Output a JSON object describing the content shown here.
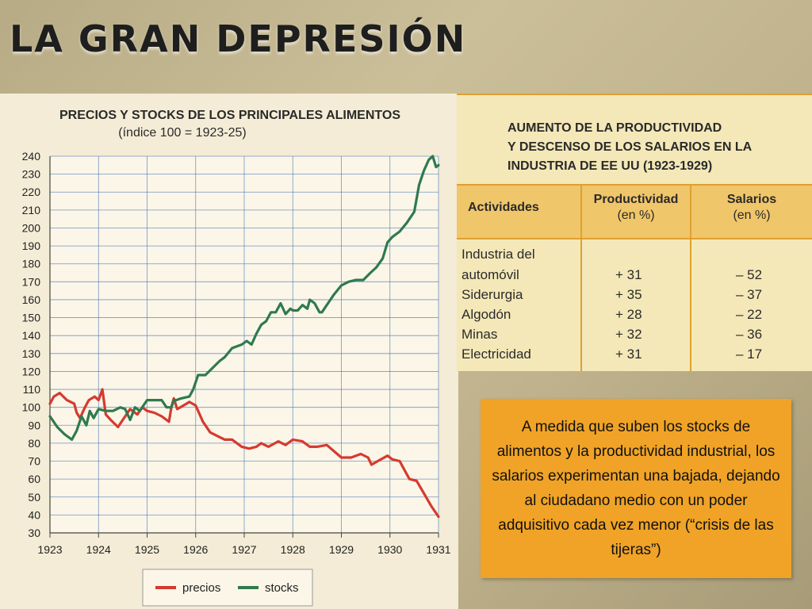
{
  "slide": {
    "title": "LA GRAN DEPRESIÓN",
    "caption": "A medida que suben los stocks de alimentos y la productividad industrial, los salarios experimentan una bajada, dejando al ciudadano medio con un poder adquisitivo cada vez menor (“crisis de las tijeras”)"
  },
  "colors": {
    "precios": "#d63a2f",
    "stocks": "#2f7a4e",
    "grid": "#3b6fb5",
    "caption_bg": "#f0a326"
  },
  "chart_data": {
    "type": "line",
    "title": "PRECIOS Y STOCKS DE LOS PRINCIPALES ALIMENTOS",
    "subtitle": "(índice 100 = 1923-25)",
    "x_ticks": [
      "1923",
      "1924",
      "1925",
      "1926",
      "1927",
      "1928",
      "1929",
      "1930",
      "1931"
    ],
    "y_ticks": [
      30,
      40,
      50,
      60,
      70,
      80,
      90,
      100,
      110,
      120,
      130,
      140,
      150,
      160,
      170,
      180,
      190,
      200,
      210,
      220,
      230,
      240
    ],
    "xlim": [
      1923,
      1931
    ],
    "ylim": [
      30,
      240
    ],
    "grid": true,
    "legend_position": "bottom",
    "series": [
      {
        "name": "precios",
        "color": "#d63a2f",
        "x": [
          1923.0,
          1923.08,
          1923.2,
          1923.35,
          1923.5,
          1923.55,
          1923.62,
          1923.72,
          1923.8,
          1923.92,
          1924.0,
          1924.08,
          1924.15,
          1924.25,
          1924.4,
          1924.55,
          1924.65,
          1924.8,
          1924.9,
          1925.0,
          1925.15,
          1925.3,
          1925.45,
          1925.5,
          1925.55,
          1925.62,
          1925.75,
          1925.87,
          1926.0,
          1926.15,
          1926.3,
          1926.45,
          1926.6,
          1926.75,
          1926.95,
          1927.1,
          1927.25,
          1927.35,
          1927.5,
          1927.7,
          1927.85,
          1928.0,
          1928.2,
          1928.35,
          1928.5,
          1928.7,
          1929.0,
          1929.2,
          1929.4,
          1929.55,
          1929.62,
          1929.75,
          1929.95,
          1930.05,
          1930.2,
          1930.4,
          1930.55,
          1930.7,
          1930.85,
          1931.0
        ],
        "y": [
          102,
          106,
          108,
          104,
          102,
          97,
          94,
          100,
          104,
          106,
          104,
          110,
          96,
          93,
          89,
          95,
          99,
          96,
          100,
          98,
          97,
          95,
          92,
          100,
          105,
          99,
          101,
          103,
          101,
          92,
          86,
          84,
          82,
          82,
          78,
          77,
          78,
          80,
          78,
          81,
          79,
          82,
          81,
          78,
          78,
          79,
          72,
          72,
          74,
          72,
          68,
          70,
          73,
          71,
          70,
          60,
          59,
          52,
          45,
          39
        ]
      },
      {
        "name": "stocks",
        "color": "#2f7a4e",
        "x": [
          1923.0,
          1923.15,
          1923.3,
          1923.45,
          1923.55,
          1923.65,
          1923.75,
          1923.82,
          1923.9,
          1924.0,
          1924.15,
          1924.3,
          1924.45,
          1924.55,
          1924.65,
          1924.75,
          1924.85,
          1925.0,
          1925.1,
          1925.2,
          1925.3,
          1925.4,
          1925.5,
          1925.55,
          1925.6,
          1925.7,
          1925.87,
          1925.95,
          1926.05,
          1926.2,
          1926.35,
          1926.5,
          1926.6,
          1926.75,
          1926.85,
          1926.95,
          1927.05,
          1927.15,
          1927.25,
          1927.35,
          1927.45,
          1927.55,
          1927.65,
          1927.75,
          1927.85,
          1927.95,
          1928.0,
          1928.1,
          1928.2,
          1928.3,
          1928.35,
          1928.45,
          1928.55,
          1928.6,
          1928.7,
          1928.85,
          1929.0,
          1929.15,
          1929.3,
          1929.45,
          1929.6,
          1929.72,
          1929.85,
          1929.95,
          1930.05,
          1930.2,
          1930.35,
          1930.5,
          1930.6,
          1930.7,
          1930.8,
          1930.88,
          1930.95,
          1931.0
        ],
        "y": [
          95,
          89,
          85,
          82,
          87,
          95,
          90,
          98,
          94,
          99,
          98,
          98,
          100,
          99,
          93,
          100,
          98,
          104,
          104,
          104,
          104,
          100,
          100,
          104,
          104,
          105,
          106,
          110,
          118,
          118,
          122,
          126,
          128,
          133,
          134,
          135,
          137,
          135,
          141,
          146,
          148,
          153,
          153,
          158,
          152,
          155,
          154,
          154,
          157,
          155,
          160,
          158,
          153,
          153,
          157,
          163,
          168,
          170,
          171,
          171,
          175,
          178,
          183,
          192,
          195,
          198,
          203,
          209,
          224,
          232,
          238,
          240,
          234,
          235
        ]
      }
    ]
  },
  "table": {
    "title_lines": [
      "AUMENTO DE LA PRODUCTIVIDAD",
      "Y DESCENSO DE LOS SALARIOS EN LA",
      "INDUSTRIA DE EE UU (1923-1929)"
    ],
    "headers": {
      "actividades": "Actividades",
      "productividad": "Productividad",
      "productividad_unit": "(en %)",
      "salarios": "Salarios",
      "salarios_unit": "(en %)"
    },
    "rows": [
      {
        "actividad_l1": "Industria del",
        "actividad_l2": "automóvil",
        "productividad": "+ 31",
        "salarios": "– 52"
      },
      {
        "actividad": "Siderurgia",
        "productividad": "+ 35",
        "salarios": "– 37"
      },
      {
        "actividad": "Algodón",
        "productividad": "+ 28",
        "salarios": "– 22"
      },
      {
        "actividad": "Minas",
        "productividad": "+ 32",
        "salarios": "– 36"
      },
      {
        "actividad": "Electricidad",
        "productividad": "+ 31",
        "salarios": "– 17"
      }
    ]
  }
}
